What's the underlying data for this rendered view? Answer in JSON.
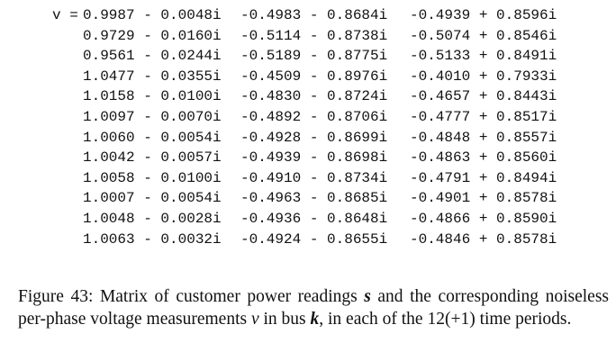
{
  "matrix": {
    "label": "v =",
    "rows": [
      [
        "0.9987 - 0.0048i",
        "-0.4983 - 0.8684i",
        "-0.4939 + 0.8596i"
      ],
      [
        "0.9729 - 0.0160i",
        "-0.5114 - 0.8738i",
        "-0.5074 + 0.8546i"
      ],
      [
        "0.9561 - 0.0244i",
        "-0.5189 - 0.8775i",
        "-0.5133 + 0.8491i"
      ],
      [
        "1.0477 - 0.0355i",
        "-0.4509 - 0.8976i",
        "-0.4010 + 0.7933i"
      ],
      [
        "1.0158 - 0.0100i",
        "-0.4830 - 0.8724i",
        "-0.4657 + 0.8443i"
      ],
      [
        "1.0097 - 0.0070i",
        "-0.4892 - 0.8706i",
        "-0.4777 + 0.8517i"
      ],
      [
        "1.0060 - 0.0054i",
        "-0.4928 - 0.8699i",
        "-0.4848 + 0.8557i"
      ],
      [
        "1.0042 - 0.0057i",
        "-0.4939 - 0.8698i",
        "-0.4863 + 0.8560i"
      ],
      [
        "1.0058 - 0.0100i",
        "-0.4910 - 0.8734i",
        "-0.4791 + 0.8494i"
      ],
      [
        "1.0007 - 0.0054i",
        "-0.4963 - 0.8685i",
        "-0.4901 + 0.8578i"
      ],
      [
        "1.0048 - 0.0028i",
        "-0.4936 - 0.8648i",
        "-0.4866 + 0.8590i"
      ],
      [
        "1.0063 - 0.0032i",
        "-0.4924 - 0.8655i",
        "-0.4846 + 0.8578i"
      ]
    ]
  },
  "caption": {
    "label": "Figure 43:",
    "parts": [
      "Matrix of customer power readings",
      "s",
      "and the corresponding noiseless per-phase voltage measurements",
      "v",
      "in bus",
      "k",
      ", in each of the 12(+1) time periods."
    ]
  }
}
